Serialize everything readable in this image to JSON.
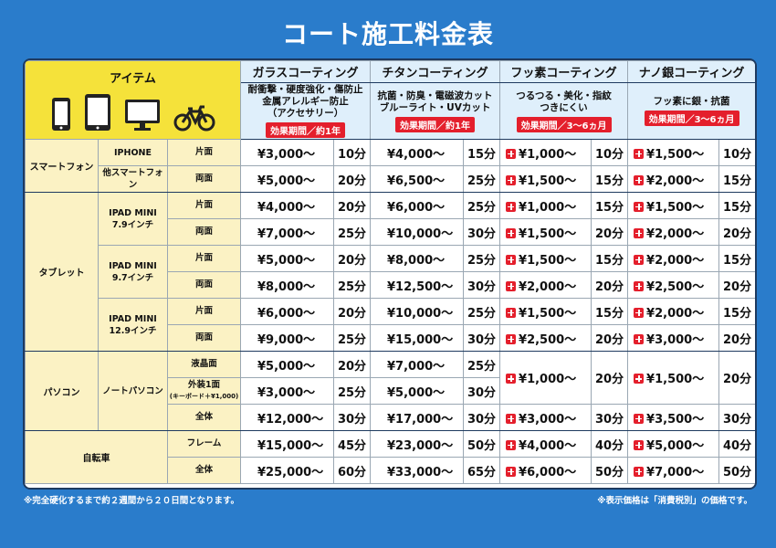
{
  "title": "コート施工料金表",
  "header": {
    "item_label": "アイテム",
    "coatings": [
      {
        "name": "ガラスコーティング",
        "features": [
          "耐衝撃・硬度強化・傷防止",
          "金属アレルギー防止",
          "（アクセサリー）"
        ],
        "badge": "効果期間／約1年"
      },
      {
        "name": "チタンコーティング",
        "features": [
          "抗菌・防臭・電磁波カット",
          "ブルーライト・UVカット"
        ],
        "badge": "効果期間／約1年"
      },
      {
        "name": "フッ素コーティング",
        "features": [
          "つるつる・美化・指紋",
          "つきにくい"
        ],
        "badge": "効果期間／3〜6ヵ月"
      },
      {
        "name": "ナノ銀コーティング",
        "features": [
          "フッ素に銀・抗菌"
        ],
        "badge": "効果期間／3〜6ヵ月"
      }
    ]
  },
  "groups": {
    "smartphone": "スマートフォン",
    "iphone": "IPHONE",
    "other_phone": "他スマートフォン",
    "tablet": "タブレット",
    "ipad_mini_79": [
      "IPAD MINI",
      "7.9インチ"
    ],
    "ipad_mini_97": [
      "IPAD MINI",
      "9.7インチ"
    ],
    "ipad_mini_129": [
      "IPAD MINI",
      "12.9インチ"
    ],
    "pc": "パソコン",
    "notebook": "ノートパソコン",
    "bicycle": "自転車"
  },
  "sides": {
    "one": "片面",
    "both": "両面",
    "lcd": "液晶面",
    "exterior": "外装1面",
    "exterior_note": "(キーボード＋¥1,000)",
    "all": "全体",
    "frame": "フレーム"
  },
  "rows": {
    "r1": [
      [
        "¥3,000〜",
        "10分"
      ],
      [
        "¥4,000〜",
        "15分"
      ],
      [
        "¥1,000〜",
        "10分"
      ],
      [
        "¥1,500〜",
        "10分"
      ]
    ],
    "r2": [
      [
        "¥5,000〜",
        "20分"
      ],
      [
        "¥6,500〜",
        "25分"
      ],
      [
        "¥1,500〜",
        "15分"
      ],
      [
        "¥2,000〜",
        "15分"
      ]
    ],
    "r3": [
      [
        "¥4,000〜",
        "20分"
      ],
      [
        "¥6,000〜",
        "25分"
      ],
      [
        "¥1,000〜",
        "15分"
      ],
      [
        "¥1,500〜",
        "15分"
      ]
    ],
    "r4": [
      [
        "¥7,000〜",
        "25分"
      ],
      [
        "¥10,000〜",
        "30分"
      ],
      [
        "¥1,500〜",
        "20分"
      ],
      [
        "¥2,000〜",
        "20分"
      ]
    ],
    "r5": [
      [
        "¥5,000〜",
        "20分"
      ],
      [
        "¥8,000〜",
        "25分"
      ],
      [
        "¥1,500〜",
        "15分"
      ],
      [
        "¥2,000〜",
        "15分"
      ]
    ],
    "r6": [
      [
        "¥8,000〜",
        "25分"
      ],
      [
        "¥12,500〜",
        "30分"
      ],
      [
        "¥2,000〜",
        "20分"
      ],
      [
        "¥2,500〜",
        "20分"
      ]
    ],
    "r7": [
      [
        "¥6,000〜",
        "20分"
      ],
      [
        "¥10,000〜",
        "25分"
      ],
      [
        "¥1,500〜",
        "15分"
      ],
      [
        "¥2,000〜",
        "15分"
      ]
    ],
    "r8": [
      [
        "¥9,000〜",
        "25分"
      ],
      [
        "¥15,000〜",
        "30分"
      ],
      [
        "¥2,500〜",
        "20分"
      ],
      [
        "¥3,000〜",
        "20分"
      ]
    ],
    "r9": [
      [
        "¥5,000〜",
        "20分"
      ],
      [
        "¥7,000〜",
        "25分"
      ]
    ],
    "r10": [
      [
        "¥3,000〜",
        "25分"
      ],
      [
        "¥5,000〜",
        "30分"
      ]
    ],
    "r9_merged": [
      [
        "¥1,000〜",
        "20分"
      ],
      [
        "¥1,500〜",
        "20分"
      ]
    ],
    "r11": [
      [
        "¥12,000〜",
        "30分"
      ],
      [
        "¥17,000〜",
        "30分"
      ],
      [
        "¥3,000〜",
        "30分"
      ],
      [
        "¥3,500〜",
        "30分"
      ]
    ],
    "r12": [
      [
        "¥15,000〜",
        "45分"
      ],
      [
        "¥23,000〜",
        "50分"
      ],
      [
        "¥4,000〜",
        "40分"
      ],
      [
        "¥5,000〜",
        "40分"
      ]
    ],
    "r13": [
      [
        "¥25,000〜",
        "60分"
      ],
      [
        "¥33,000〜",
        "65分"
      ],
      [
        "¥6,000〜",
        "50分"
      ],
      [
        "¥7,000〜",
        "50分"
      ]
    ]
  },
  "footer": {
    "left": "※完全硬化するまで約２週間から２０日間となります。",
    "right": "※表示価格は「消費税別」の価格です。"
  },
  "colors": {
    "background": "#2a7ccb",
    "accent_red": "#e41f2c",
    "item_header": "#f5e23a"
  }
}
